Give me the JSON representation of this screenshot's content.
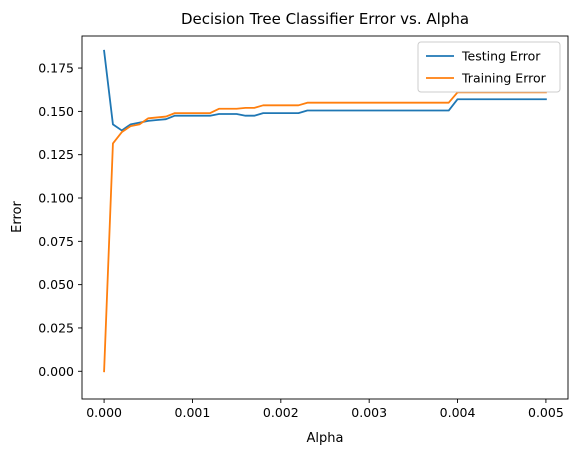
{
  "chart_data": {
    "type": "line",
    "title": "Decision Tree Classifier Error vs. Alpha",
    "xlabel": "Alpha",
    "ylabel": "Error",
    "xlim": [
      -0.00025,
      0.00525
    ],
    "ylim": [
      -0.016,
      0.1935
    ],
    "xticks": [
      0.0,
      0.001,
      0.002,
      0.003,
      0.004,
      0.005
    ],
    "xtick_labels": [
      "0.000",
      "0.001",
      "0.002",
      "0.003",
      "0.004",
      "0.005"
    ],
    "yticks": [
      0.0,
      0.025,
      0.05,
      0.075,
      0.1,
      0.125,
      0.15,
      0.175
    ],
    "ytick_labels": [
      "0.000",
      "0.025",
      "0.050",
      "0.075",
      "0.100",
      "0.125",
      "0.150",
      "0.175"
    ],
    "grid": false,
    "legend_position": "top-right",
    "series": [
      {
        "name": "Testing Error",
        "color": "#1f77b4",
        "x": [
          0.0,
          0.0001,
          0.0002,
          0.0003,
          0.0004,
          0.0005,
          0.0006,
          0.0007,
          0.0008,
          0.0009,
          0.001,
          0.0011,
          0.0012,
          0.0013,
          0.0014,
          0.0015,
          0.0016,
          0.0017,
          0.0018,
          0.0019,
          0.002,
          0.0021,
          0.0022,
          0.0023,
          0.0024,
          0.0025,
          0.003,
          0.0035,
          0.0039,
          0.004,
          0.0045,
          0.005
        ],
        "y": [
          0.185,
          0.1425,
          0.139,
          0.1425,
          0.1435,
          0.1445,
          0.145,
          0.1455,
          0.1475,
          0.1475,
          0.1475,
          0.1475,
          0.1475,
          0.1485,
          0.1485,
          0.1485,
          0.1475,
          0.1475,
          0.149,
          0.149,
          0.149,
          0.149,
          0.149,
          0.1505,
          0.1505,
          0.1505,
          0.1505,
          0.1505,
          0.1505,
          0.157,
          0.157,
          0.157
        ]
      },
      {
        "name": "Training Error",
        "color": "#ff7f0e",
        "x": [
          0.0,
          0.0001,
          0.0002,
          0.0003,
          0.0004,
          0.0005,
          0.0006,
          0.0007,
          0.0008,
          0.0009,
          0.001,
          0.0011,
          0.0012,
          0.0013,
          0.0014,
          0.0015,
          0.0016,
          0.0017,
          0.0018,
          0.0019,
          0.002,
          0.0021,
          0.0022,
          0.0023,
          0.0024,
          0.0025,
          0.003,
          0.0035,
          0.0039,
          0.004,
          0.0045,
          0.005
        ],
        "y": [
          0.0,
          0.1315,
          0.138,
          0.1415,
          0.1425,
          0.146,
          0.1465,
          0.147,
          0.149,
          0.149,
          0.149,
          0.149,
          0.149,
          0.1515,
          0.1515,
          0.1515,
          0.152,
          0.152,
          0.1535,
          0.1535,
          0.1535,
          0.1535,
          0.1535,
          0.155,
          0.155,
          0.155,
          0.155,
          0.155,
          0.155,
          0.161,
          0.161,
          0.161
        ]
      }
    ]
  }
}
